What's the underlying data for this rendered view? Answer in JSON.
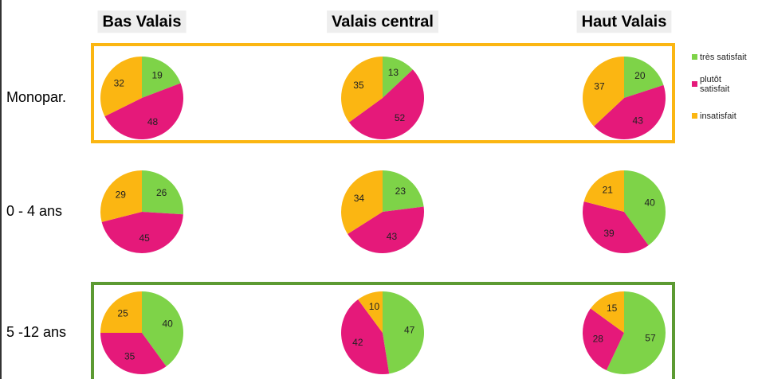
{
  "columns": [
    "Bas Valais",
    "Valais central",
    "Haut Valais"
  ],
  "rows": [
    "Monopar.",
    "0 - 4 ans",
    "5 -12 ans"
  ],
  "legend": {
    "categories": [
      "très satisfait",
      "plutôt satisfait",
      "insatisfait"
    ],
    "colors": [
      "#7ed348",
      "#e5197a",
      "#fbb612"
    ]
  },
  "chart_data": [
    {
      "type": "pie",
      "values": [
        19,
        48,
        32
      ]
    },
    {
      "type": "pie",
      "values": [
        13,
        52,
        35
      ]
    },
    {
      "type": "pie",
      "values": [
        20,
        43,
        37
      ]
    },
    {
      "type": "pie",
      "values": [
        26,
        45,
        29
      ]
    },
    {
      "type": "pie",
      "values": [
        23,
        43,
        34
      ]
    },
    {
      "type": "pie",
      "values": [
        40,
        39,
        21
      ]
    },
    {
      "type": "pie",
      "values": [
        40,
        35,
        25
      ]
    },
    {
      "type": "pie",
      "values": [
        47,
        42,
        10
      ]
    },
    {
      "type": "pie",
      "values": [
        57,
        28,
        15
      ]
    }
  ]
}
